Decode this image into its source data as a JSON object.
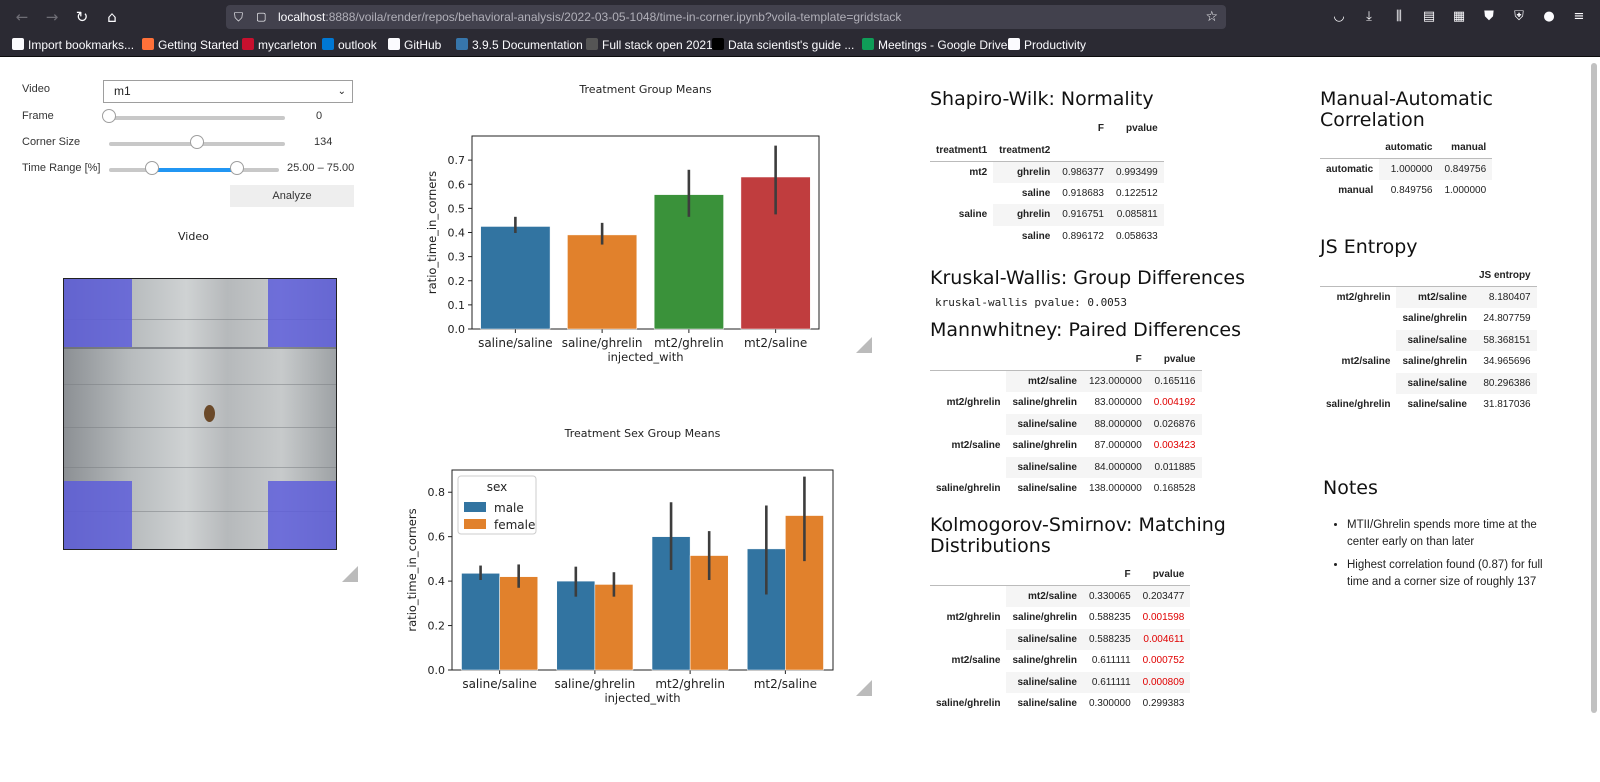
{
  "browser": {
    "url_host": "localhost",
    "url_path": ":8888/voila/render/repos/behavioral-analysis/2022-03-05-1048/time-in-corner.ipynb?voila-template=gridstack",
    "bookmarks": [
      {
        "label": "Import bookmarks...",
        "color": "#fbfbfe"
      },
      {
        "label": "Getting Started",
        "color": "#ff7139"
      },
      {
        "label": "mycarleton",
        "color": "#c8102e"
      },
      {
        "label": "outlook",
        "color": "#0078d4"
      },
      {
        "label": "GitHub",
        "color": "#fbfbfe"
      },
      {
        "label": "3.9.5 Documentation",
        "color": "#3776ab"
      },
      {
        "label": "Full stack open 2021",
        "color": "#555555"
      },
      {
        "label": "Data scientist's guide ...",
        "color": "#000000"
      },
      {
        "label": "Meetings - Google Drive",
        "color": "#0f9d58"
      },
      {
        "label": "Productivity",
        "color": "#fbfbfe"
      }
    ]
  },
  "controls": {
    "video_label": "Video",
    "video_value": "m1",
    "frame_label": "Frame",
    "frame_value": "0",
    "frame_fraction": 0.0,
    "corner_label": "Corner Size",
    "corner_value": "134",
    "corner_fraction": 0.5,
    "time_label": "Time Range [%]",
    "time_value": "25.00 – 75.00",
    "time_low": 0.25,
    "time_high": 0.75,
    "analyze_label": "Analyze",
    "video_title": "Video"
  },
  "chart_data": [
    {
      "type": "bar",
      "title": "Treatment Group Means",
      "xlabel": "injected_with",
      "ylabel": "ratio_time_in_corners",
      "ylim": [
        0,
        0.8
      ],
      "yticks": [
        0.0,
        0.1,
        0.2,
        0.3,
        0.4,
        0.5,
        0.6,
        0.7
      ],
      "categories": [
        "saline/saline",
        "saline/ghrelin",
        "mt2/ghrelin",
        "mt2/saline"
      ],
      "values": [
        0.425,
        0.39,
        0.557,
        0.63
      ],
      "err_low": [
        0.398,
        0.35,
        0.465,
        0.475
      ],
      "err_high": [
        0.465,
        0.44,
        0.66,
        0.76
      ],
      "colors": [
        "#3274a1",
        "#e1812c",
        "#3a923a",
        "#c03d3e"
      ]
    },
    {
      "type": "bar",
      "title": "Treatment Sex Group Means",
      "xlabel": "injected_with",
      "ylabel": "ratio_time_in_corners",
      "ylim": [
        0,
        0.9
      ],
      "yticks": [
        0.0,
        0.2,
        0.4,
        0.6,
        0.8
      ],
      "categories": [
        "saline/saline",
        "saline/ghrelin",
        "mt2/ghrelin",
        "mt2/saline"
      ],
      "legend_title": "sex",
      "legend_position": "top-left",
      "series": [
        {
          "name": "male",
          "color": "#3274a1",
          "values": [
            0.435,
            0.4,
            0.6,
            0.545
          ],
          "err_low": [
            0.405,
            0.33,
            0.45,
            0.34
          ],
          "err_high": [
            0.47,
            0.465,
            0.755,
            0.74
          ]
        },
        {
          "name": "female",
          "color": "#e1812c",
          "values": [
            0.42,
            0.385,
            0.515,
            0.695
          ],
          "err_low": [
            0.37,
            0.33,
            0.405,
            0.49
          ],
          "err_high": [
            0.475,
            0.44,
            0.625,
            0.87
          ]
        }
      ]
    }
  ],
  "shapiro": {
    "title": "Shapiro-Wilk: Normality",
    "col_f": "F",
    "col_p": "pvalue",
    "idx1": "treatment1",
    "idx2": "treatment2",
    "rows": [
      {
        "g1": "mt2",
        "g2": "ghrelin",
        "f": "0.986377",
        "p": "0.993499"
      },
      {
        "g1": "",
        "g2": "saline",
        "f": "0.918683",
        "p": "0.122512"
      },
      {
        "g1": "saline",
        "g2": "ghrelin",
        "f": "0.916751",
        "p": "0.085811"
      },
      {
        "g1": "",
        "g2": "saline",
        "f": "0.896172",
        "p": "0.058633"
      }
    ]
  },
  "kruskal": {
    "title": "Kruskal-Wallis: Group Differences",
    "text": "kruskal-wallis pvalue: 0.0053"
  },
  "mannwhitney": {
    "title": "Mannwhitney: Paired Differences",
    "col_f": "F",
    "col_p": "pvalue",
    "rows": [
      {
        "g1": "",
        "g2": "mt2/saline",
        "f": "123.000000",
        "p": "0.165116",
        "sig": false
      },
      {
        "g1": "mt2/ghrelin",
        "g2": "saline/ghrelin",
        "f": "83.000000",
        "p": "0.004192",
        "sig": true
      },
      {
        "g1": "",
        "g2": "saline/saline",
        "f": "88.000000",
        "p": "0.026876",
        "sig": false
      },
      {
        "g1": "mt2/saline",
        "g2": "saline/ghrelin",
        "f": "87.000000",
        "p": "0.003423",
        "sig": true
      },
      {
        "g1": "",
        "g2": "saline/saline",
        "f": "84.000000",
        "p": "0.011885",
        "sig": false
      },
      {
        "g1": "saline/ghrelin",
        "g2": "saline/saline",
        "f": "138.000000",
        "p": "0.168528",
        "sig": false
      }
    ]
  },
  "kolmogorov": {
    "title": "Kolmogorov-Smirnov: Matching Distributions",
    "col_f": "F",
    "col_p": "pvalue",
    "rows": [
      {
        "g1": "",
        "g2": "mt2/saline",
        "f": "0.330065",
        "p": "0.203477",
        "sig": false
      },
      {
        "g1": "mt2/ghrelin",
        "g2": "saline/ghrelin",
        "f": "0.588235",
        "p": "0.001598",
        "sig": true
      },
      {
        "g1": "",
        "g2": "saline/saline",
        "f": "0.588235",
        "p": "0.004611",
        "sig": true
      },
      {
        "g1": "mt2/saline",
        "g2": "saline/ghrelin",
        "f": "0.611111",
        "p": "0.000752",
        "sig": true
      },
      {
        "g1": "",
        "g2": "saline/saline",
        "f": "0.611111",
        "p": "0.000809",
        "sig": true
      },
      {
        "g1": "saline/ghrelin",
        "g2": "saline/saline",
        "f": "0.300000",
        "p": "0.299383",
        "sig": false
      }
    ]
  },
  "correlation": {
    "title": "Manual-Automatic Correlation",
    "col_a": "automatic",
    "col_m": "manual",
    "rows": [
      {
        "name": "automatic",
        "a": "1.000000",
        "m": "0.849756"
      },
      {
        "name": "manual",
        "a": "0.849756",
        "m": "1.000000"
      }
    ]
  },
  "entropy": {
    "title": "JS Entropy",
    "col": "JS entropy",
    "rows": [
      {
        "g1": "mt2/ghrelin",
        "g2": "mt2/saline",
        "v": "8.180407"
      },
      {
        "g1": "",
        "g2": "saline/ghrelin",
        "v": "24.807759"
      },
      {
        "g1": "",
        "g2": "saline/saline",
        "v": "58.368151"
      },
      {
        "g1": "mt2/saline",
        "g2": "saline/ghrelin",
        "v": "34.965696"
      },
      {
        "g1": "",
        "g2": "saline/saline",
        "v": "80.296386"
      },
      {
        "g1": "saline/ghrelin",
        "g2": "saline/saline",
        "v": "31.817036"
      }
    ]
  },
  "notes": {
    "title": "Notes",
    "items": [
      "MTII/Ghrelin spends more time at the center early on than later",
      "Highest correlation found (0.87) for full time and a corner size of roughly 137"
    ]
  }
}
